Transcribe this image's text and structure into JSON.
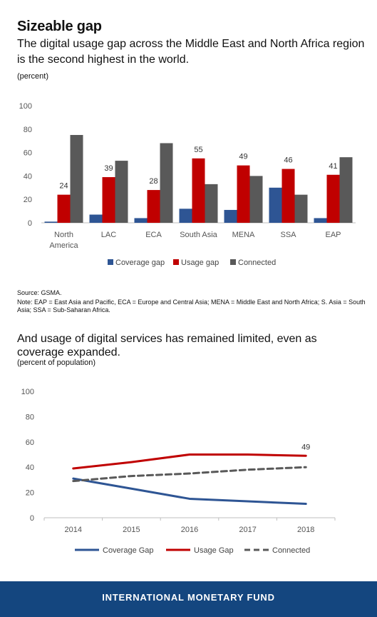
{
  "header": {
    "title": "Sizeable gap",
    "subtitle": "The digital usage gap across the Middle East and North Africa region is the second highest in the world.",
    "unit": "(percent)"
  },
  "notes": {
    "source": "Source: GSMA.",
    "note": "Note: EAP = East Asia and Pacific, ECA = Europe and Central Asia; MENA = Middle East and North Africa; S. Asia = South Asia; SSA = Sub-Saharan Africa."
  },
  "second": {
    "title": "And usage of digital services has remained limited, even as coverage expanded.",
    "unit": "(percent of population)"
  },
  "footer": {
    "label": "INTERNATIONAL MONETARY FUND"
  },
  "colors": {
    "coverage": "#2e5594",
    "usage": "#c00000",
    "connected": "#595959",
    "footer": "#14467f"
  },
  "chart_data": [
    {
      "type": "bar",
      "categories": [
        [
          "North",
          "America"
        ],
        [
          "LAC"
        ],
        [
          "ECA"
        ],
        [
          "South Asia"
        ],
        [
          "MENA"
        ],
        [
          "SSA"
        ],
        [
          "EAP"
        ]
      ],
      "series": [
        {
          "name": "Coverage gap",
          "values": [
            1,
            7,
            4,
            12,
            11,
            30,
            4
          ]
        },
        {
          "name": "Usage gap",
          "values": [
            24,
            39,
            28,
            55,
            49,
            46,
            41
          ]
        },
        {
          "name": "Connected",
          "values": [
            75,
            53,
            68,
            33,
            40,
            24,
            56
          ]
        }
      ],
      "data_labels": [
        "24",
        "39",
        "28",
        "55",
        "49",
        "46",
        "41"
      ],
      "ylim": [
        0,
        100
      ],
      "yticks": [
        "0",
        "20",
        "40",
        "60",
        "80",
        "100"
      ],
      "legend": "bottom",
      "grid": false
    },
    {
      "type": "line",
      "x": [
        "2014",
        "2015",
        "2016",
        "2017",
        "2018"
      ],
      "series": [
        {
          "name": "Coverage Gap",
          "values": [
            31,
            23,
            15,
            13,
            11
          ]
        },
        {
          "name": "Usage Gap",
          "values": [
            39,
            44,
            50,
            50,
            49
          ]
        },
        {
          "name": "Connected",
          "values": [
            29,
            33,
            35,
            38,
            40
          ]
        }
      ],
      "data_labels": [
        {
          "series": "Usage Gap",
          "x": "2018",
          "text": "49"
        }
      ],
      "ylim": [
        0,
        100
      ],
      "yticks": [
        "0",
        "20",
        "40",
        "60",
        "80",
        "100"
      ],
      "legend": "bottom",
      "grid": false
    }
  ]
}
